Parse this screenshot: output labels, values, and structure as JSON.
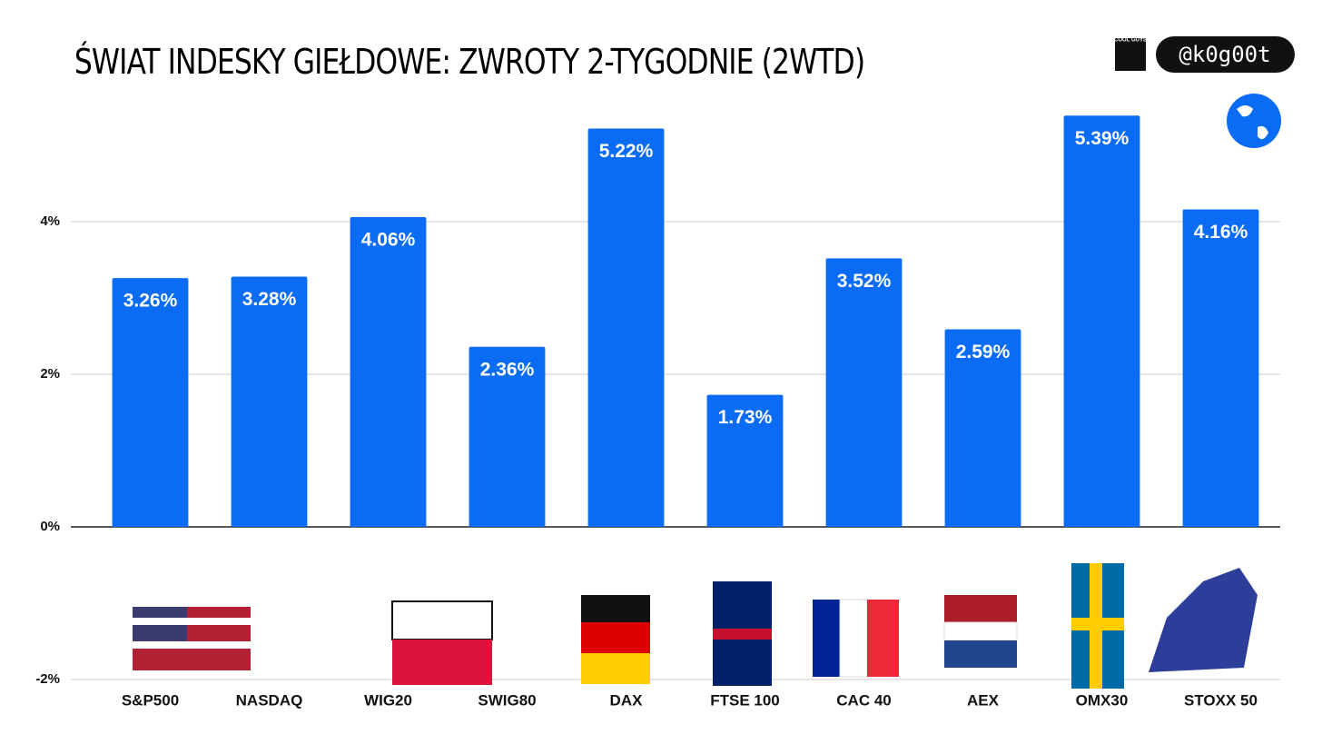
{
  "chart_data": {
    "type": "bar",
    "title": "ŚWIAT INDESKY GIEŁDOWE: ZWROTY 2-TYGODNIE (2WTD)",
    "categories": [
      "S&P500",
      "NASDAQ",
      "WIG20",
      "SWIG80",
      "DAX",
      "FTSE 100",
      "CAC 40",
      "AEX",
      "OMX30",
      "STOXX 50"
    ],
    "values": [
      3.26,
      3.28,
      4.06,
      2.36,
      5.22,
      1.73,
      3.52,
      2.59,
      5.39,
      4.16
    ],
    "value_labels": [
      "3.26%",
      "3.28%",
      "4.06%",
      "2.36%",
      "5.22%",
      "1.73%",
      "3.52%",
      "2.59%",
      "5.39%",
      "4.16%"
    ],
    "color": "#0a6cf5",
    "ylim": [
      -2,
      5.5
    ],
    "yticks": [
      {
        "value": -2,
        "label": "-2%"
      },
      {
        "value": 0,
        "label": "0%"
      },
      {
        "value": 2,
        "label": "2%"
      },
      {
        "value": 4,
        "label": "4%"
      }
    ],
    "grid": true
  },
  "branding": {
    "logo_text": "COOL GUYS",
    "handle": "@k0g00t"
  }
}
